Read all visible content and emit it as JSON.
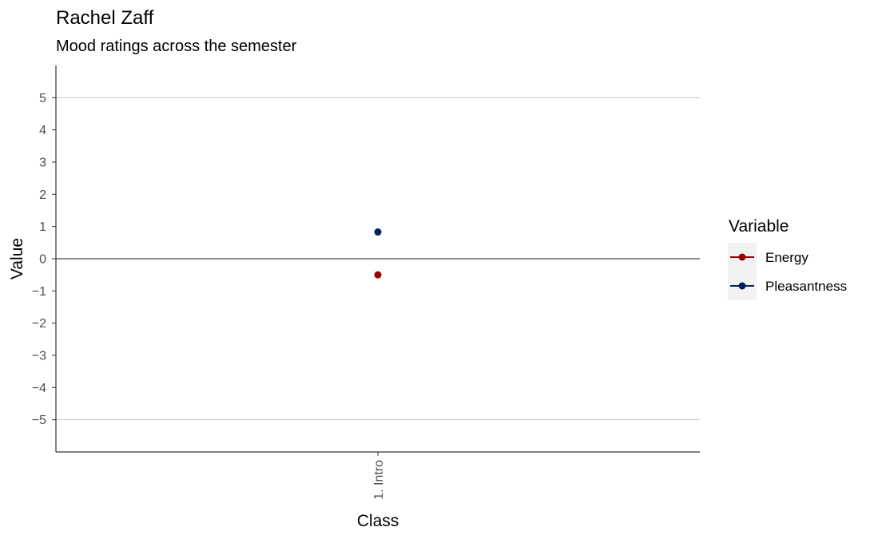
{
  "title": "Rachel Zaff",
  "subtitle": "Mood ratings across the semester",
  "chart_data": {
    "type": "scatter",
    "title": "Rachel Zaff",
    "subtitle": "Mood ratings across the semester",
    "xlabel": "Class",
    "ylabel": "Value",
    "categories": [
      "1. Intro"
    ],
    "ylim": [
      -6,
      6
    ],
    "yticks": [
      -5,
      -4,
      -3,
      -2,
      -1,
      0,
      1,
      2,
      3,
      4,
      5
    ],
    "ytick_labels": [
      "−5",
      "−4",
      "−3",
      "−2",
      "−1",
      "0",
      "1",
      "2",
      "3",
      "4",
      "5"
    ],
    "reference_lines": [
      -5,
      0,
      5
    ],
    "grid": false,
    "legend": {
      "title": "Variable",
      "placement": "right"
    },
    "series": [
      {
        "name": "Energy",
        "color": "#990000",
        "values": [
          -0.5
        ]
      },
      {
        "name": "Pleasantness",
        "color": "#011f5b",
        "values": [
          0.83
        ]
      }
    ]
  }
}
